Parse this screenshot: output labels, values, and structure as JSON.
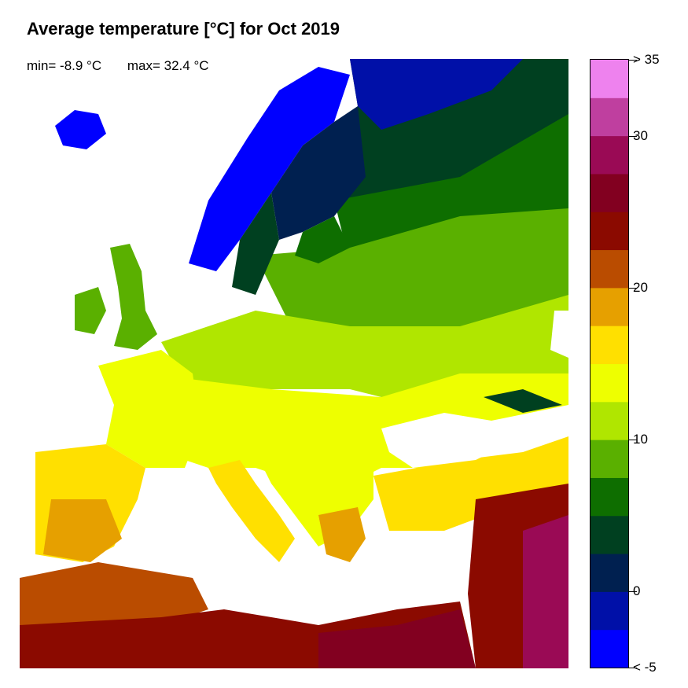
{
  "title": "Average temperature [°C] for Oct 2019",
  "stats": {
    "min": "min= -8.9 °C",
    "max": "max= 32.4 °C"
  },
  "legend": {
    "range": [
      -5,
      35
    ],
    "step": 2.5,
    "colors": [
      "#0000FF",
      "#0010A8",
      "#002050",
      "#004020",
      "#0E6E00",
      "#5AB000",
      "#B0E600",
      "#EEFF00",
      "#FFE000",
      "#E6A000",
      "#BA4C00",
      "#8B0A00",
      "#820020",
      "#9A0A55",
      "#BF3F9F",
      "#EE82EE"
    ],
    "ticks": [
      {
        "value": 35,
        "label": "> 35"
      },
      {
        "value": 30,
        "label": "30"
      },
      {
        "value": 20,
        "label": "20"
      },
      {
        "value": 10,
        "label": "10"
      },
      {
        "value": 0,
        "label": "0"
      },
      {
        "value": -5,
        "label": "< -5"
      }
    ]
  }
}
